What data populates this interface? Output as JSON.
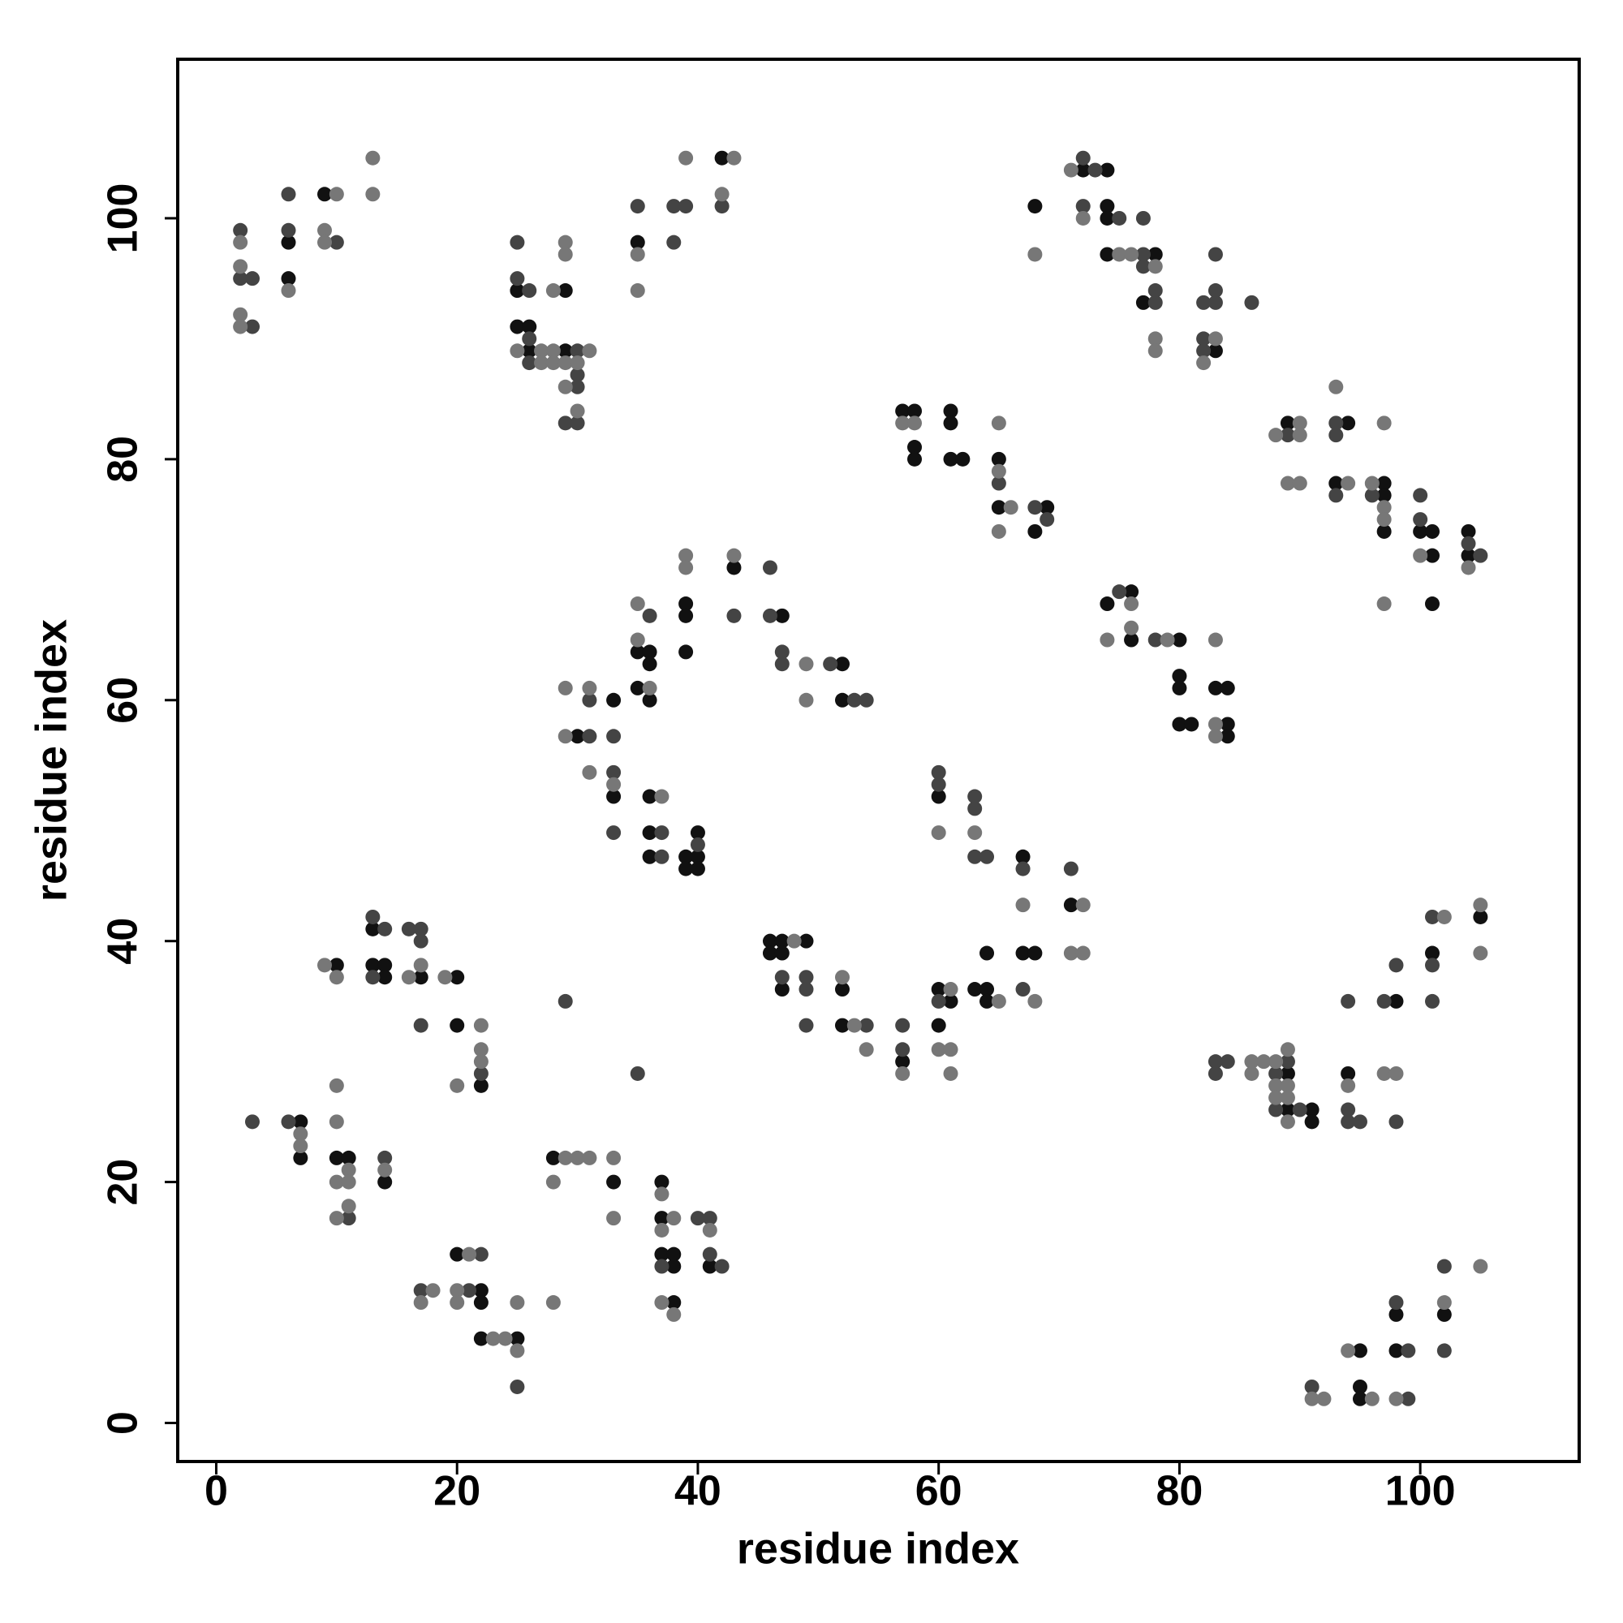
{
  "chart_data": {
    "type": "scatter",
    "x_label": "residue index",
    "y_label": "residue index",
    "xlim": [
      -3.2,
      113.2
    ],
    "ylim": [
      -3.2,
      113.2
    ],
    "xticks": [
      0,
      20,
      40,
      60,
      80,
      100
    ],
    "yticks": [
      0,
      20,
      40,
      60,
      80,
      100
    ],
    "grid": false,
    "series": [
      {
        "color": "#111111",
        "x": [
          6,
          6,
          9,
          25,
          25,
          26,
          26,
          29,
          29,
          35,
          42,
          72,
          74,
          74,
          74,
          74,
          78,
          77,
          83,
          68,
          57,
          58,
          58,
          58,
          61,
          61,
          61,
          62,
          65,
          65,
          69,
          68,
          89,
          94,
          93,
          97,
          97,
          97,
          100,
          101,
          101,
          101,
          104,
          104,
          74,
          76,
          76,
          80,
          80,
          80,
          80,
          81,
          83,
          84,
          84,
          84,
          30,
          33,
          33,
          35,
          36,
          36,
          35,
          36,
          36,
          36,
          36,
          39,
          39,
          39,
          40,
          39,
          40,
          39,
          40,
          43,
          47,
          52,
          52,
          46,
          47,
          46,
          47,
          49,
          47,
          52,
          52,
          57,
          60,
          67,
          71,
          60,
          61,
          60,
          63,
          64,
          64,
          64,
          67,
          68,
          10,
          13,
          13,
          14,
          14,
          17,
          20,
          20,
          22,
          7,
          7,
          10,
          11,
          14,
          20,
          22,
          22,
          22,
          25,
          28,
          33,
          37,
          37,
          37,
          38,
          38,
          41,
          38,
          89,
          89,
          91,
          91,
          94,
          98,
          101,
          105,
          95,
          95,
          95,
          98,
          98,
          102
        ],
        "y": [
          98,
          95,
          102,
          94,
          91,
          91,
          89,
          94,
          89,
          98,
          105,
          104,
          104,
          101,
          100,
          97,
          97,
          93,
          89,
          101,
          84,
          84,
          81,
          80,
          84,
          83,
          80,
          80,
          80,
          76,
          76,
          74,
          83,
          83,
          78,
          78,
          77,
          74,
          74,
          74,
          72,
          68,
          74,
          72,
          68,
          69,
          65,
          65,
          62,
          61,
          58,
          58,
          61,
          61,
          58,
          57,
          57,
          60,
          52,
          64,
          64,
          63,
          61,
          60,
          52,
          49,
          47,
          68,
          67,
          64,
          49,
          47,
          47,
          46,
          46,
          71,
          67,
          63,
          60,
          40,
          40,
          39,
          39,
          40,
          36,
          36,
          33,
          30,
          52,
          47,
          43,
          36,
          35,
          33,
          36,
          36,
          35,
          39,
          39,
          39,
          38,
          41,
          38,
          38,
          37,
          37,
          37,
          33,
          28,
          25,
          22,
          22,
          22,
          20,
          14,
          11,
          10,
          7,
          7,
          22,
          20,
          20,
          17,
          14,
          14,
          13,
          13,
          10,
          29,
          26,
          26,
          25,
          29,
          35,
          39,
          42,
          6,
          3,
          2,
          9,
          6,
          9
        ]
      },
      {
        "color": "#444444",
        "x": [
          2,
          2,
          3,
          3,
          6,
          6,
          10,
          25,
          25,
          26,
          26,
          26,
          29,
          30,
          30,
          30,
          30,
          35,
          38,
          39,
          38,
          42,
          72,
          73,
          72,
          75,
          77,
          77,
          77,
          78,
          78,
          82,
          83,
          83,
          83,
          82,
          82,
          86,
          65,
          68,
          69,
          89,
          93,
          93,
          93,
          96,
          100,
          100,
          104,
          105,
          75,
          78,
          31,
          31,
          33,
          33,
          33,
          36,
          37,
          37,
          40,
          43,
          46,
          46,
          47,
          47,
          51,
          53,
          54,
          47,
          49,
          49,
          49,
          54,
          57,
          57,
          60,
          60,
          63,
          63,
          63,
          64,
          67,
          71,
          60,
          67,
          13,
          14,
          13,
          16,
          17,
          17,
          17,
          22,
          29,
          35,
          3,
          6,
          11,
          14,
          17,
          22,
          21,
          25,
          37,
          40,
          41,
          41,
          42,
          83,
          84,
          83,
          89,
          88,
          88,
          90,
          94,
          94,
          95,
          94,
          97,
          98,
          98,
          101,
          101,
          101,
          91,
          98,
          99,
          99,
          102,
          102
        ],
        "y": [
          99,
          95,
          95,
          91,
          102,
          99,
          98,
          98,
          95,
          94,
          90,
          88,
          83,
          89,
          87,
          86,
          83,
          101,
          101,
          101,
          98,
          101,
          105,
          104,
          101,
          100,
          100,
          97,
          96,
          94,
          93,
          93,
          93,
          94,
          97,
          90,
          89,
          93,
          78,
          76,
          75,
          82,
          83,
          82,
          77,
          77,
          77,
          75,
          73,
          72,
          69,
          65,
          60,
          57,
          57,
          54,
          49,
          67,
          49,
          47,
          48,
          67,
          71,
          67,
          64,
          63,
          63,
          60,
          60,
          37,
          37,
          36,
          33,
          33,
          33,
          31,
          54,
          53,
          52,
          51,
          47,
          47,
          46,
          46,
          35,
          36,
          42,
          41,
          37,
          41,
          41,
          40,
          33,
          29,
          35,
          29,
          25,
          25,
          17,
          22,
          11,
          14,
          11,
          3,
          13,
          17,
          17,
          14,
          13,
          30,
          30,
          29,
          30,
          29,
          26,
          26,
          26,
          25,
          25,
          35,
          35,
          38,
          25,
          42,
          38,
          35,
          3,
          10,
          6,
          2,
          13,
          6
        ]
      },
      {
        "color": "#777777",
        "x": [
          2,
          2,
          2,
          2,
          6,
          10,
          9,
          9,
          13,
          13,
          25,
          27,
          27,
          28,
          28,
          28,
          29,
          29,
          29,
          29,
          30,
          30,
          31,
          35,
          35,
          39,
          43,
          42,
          68,
          71,
          72,
          75,
          76,
          78,
          78,
          78,
          83,
          82,
          57,
          58,
          65,
          65,
          66,
          65,
          88,
          90,
          90,
          89,
          90,
          93,
          94,
          96,
          97,
          97,
          97,
          97,
          100,
          104,
          76,
          74,
          76,
          79,
          83,
          83,
          83,
          29,
          31,
          29,
          31,
          33,
          35,
          35,
          36,
          37,
          39,
          39,
          43,
          49,
          49,
          48,
          52,
          53,
          54,
          57,
          60,
          63,
          67,
          72,
          71,
          72,
          61,
          60,
          61,
          61,
          65,
          68,
          9,
          10,
          17,
          16,
          19,
          20,
          22,
          22,
          22,
          7,
          7,
          10,
          10,
          11,
          10,
          11,
          11,
          10,
          14,
          18,
          17,
          21,
          20,
          20,
          23,
          24,
          25,
          25,
          28,
          29,
          30,
          31,
          28,
          33,
          33,
          37,
          38,
          37,
          41,
          37,
          38,
          86,
          87,
          86,
          88,
          89,
          88,
          89,
          88,
          89,
          89,
          94,
          97,
          98,
          102,
          105,
          105,
          91,
          92,
          94,
          96,
          98,
          102,
          105
        ],
        "y": [
          98,
          96,
          92,
          91,
          94,
          102,
          99,
          98,
          105,
          102,
          89,
          89,
          88,
          89,
          88,
          94,
          98,
          97,
          88,
          86,
          88,
          84,
          89,
          97,
          94,
          105,
          105,
          102,
          97,
          104,
          100,
          97,
          97,
          96,
          90,
          89,
          90,
          88,
          83,
          83,
          83,
          79,
          76,
          74,
          82,
          83,
          82,
          78,
          78,
          86,
          78,
          78,
          83,
          76,
          75,
          68,
          72,
          71,
          68,
          65,
          66,
          65,
          65,
          58,
          57,
          61,
          61,
          57,
          54,
          53,
          68,
          65,
          61,
          52,
          72,
          71,
          72,
          63,
          60,
          40,
          37,
          33,
          31,
          29,
          49,
          49,
          43,
          43,
          39,
          39,
          36,
          31,
          31,
          29,
          35,
          35,
          38,
          37,
          38,
          37,
          37,
          28,
          33,
          31,
          30,
          24,
          23,
          28,
          25,
          21,
          20,
          20,
          18,
          17,
          21,
          11,
          10,
          14,
          11,
          10,
          7,
          7,
          6,
          10,
          10,
          22,
          22,
          22,
          20,
          22,
          17,
          19,
          17,
          16,
          16,
          10,
          9,
          30,
          30,
          29,
          30,
          31,
          28,
          28,
          27,
          27,
          25,
          28,
          29,
          29,
          42,
          43,
          39,
          2,
          2,
          6,
          2,
          2,
          10,
          13
        ]
      }
    ]
  }
}
